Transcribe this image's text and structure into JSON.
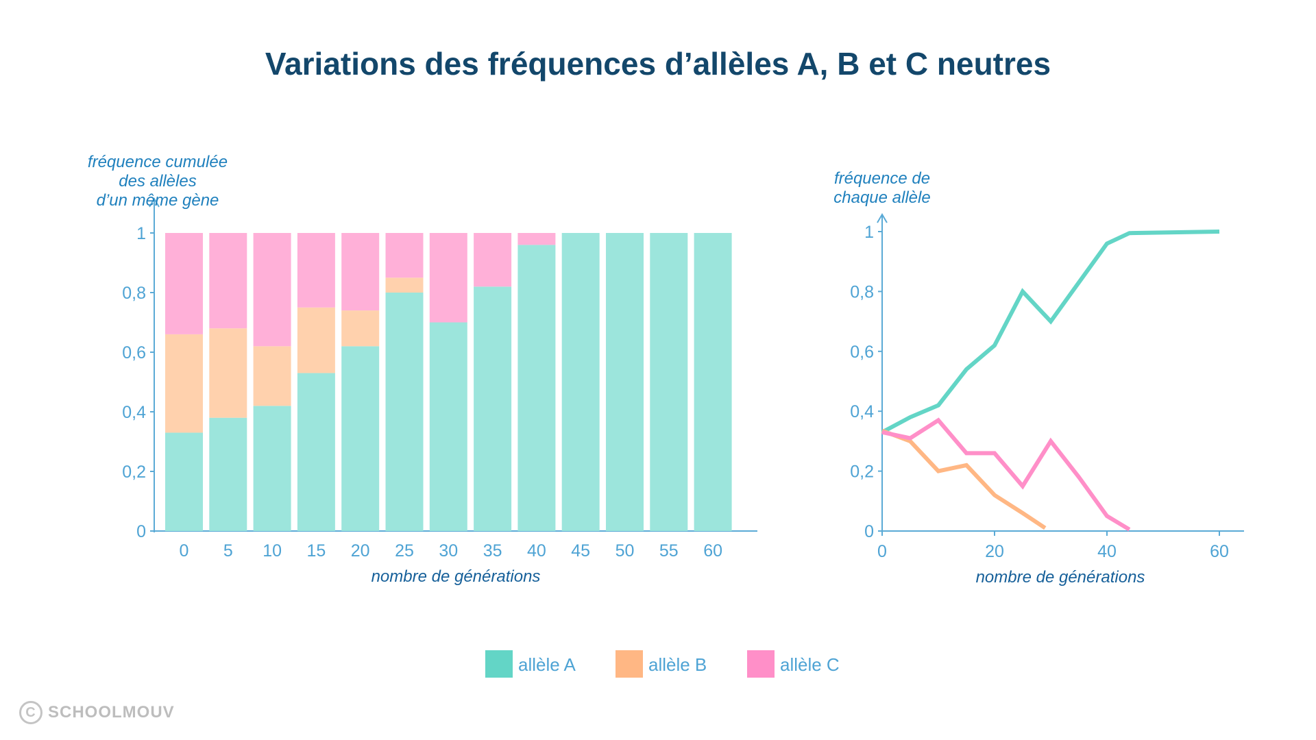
{
  "title": "Variations des fréquences d’allèles A, B et C neutres",
  "watermark": "SCHOOLMOUV",
  "legend": [
    {
      "label": "allèle A",
      "color": "#63d5c6"
    },
    {
      "label": "allèle B",
      "color": "#ffb784"
    },
    {
      "label": "allèle C",
      "color": "#ff8fc8"
    }
  ],
  "chart_data": [
    {
      "type": "bar",
      "stacked": true,
      "ylabel": [
        "fréquence cumulée",
        "des allèles",
        "d’un même gène"
      ],
      "xlabel": "nombre de générations",
      "ylim": [
        0,
        1
      ],
      "yticks": [
        0,
        0.2,
        0.4,
        0.6,
        0.8,
        1
      ],
      "ytick_labels": [
        "0",
        "0,2",
        "0,4",
        "0,6",
        "0,8",
        "1"
      ],
      "categories": [
        "0",
        "5",
        "10",
        "15",
        "20",
        "25",
        "30",
        "35",
        "40",
        "45",
        "50",
        "55",
        "60"
      ],
      "series": [
        {
          "name": "allèle A",
          "color": "#9ce5dc",
          "values": [
            0.33,
            0.38,
            0.42,
            0.53,
            0.62,
            0.8,
            0.7,
            0.82,
            0.96,
            1,
            1,
            1,
            1
          ]
        },
        {
          "name": "allèle B",
          "color": "#ffd1ad",
          "values": [
            0.33,
            0.3,
            0.2,
            0.22,
            0.12,
            0.05,
            0,
            0,
            0,
            0,
            0,
            0,
            0
          ]
        },
        {
          "name": "allèle C",
          "color": "#ffb0d8",
          "values": [
            0.34,
            0.32,
            0.38,
            0.25,
            0.26,
            0.15,
            0.3,
            0.18,
            0.04,
            0,
            0,
            0,
            0
          ]
        }
      ]
    },
    {
      "type": "line",
      "ylabel": [
        "fréquence de",
        "chaque allèle"
      ],
      "xlabel": "nombre de générations",
      "xlim": [
        0,
        65
      ],
      "ylim": [
        0,
        1
      ],
      "xticks": [
        0,
        20,
        40,
        60
      ],
      "yticks": [
        0,
        0.2,
        0.4,
        0.6,
        0.8,
        1
      ],
      "ytick_labels": [
        "0",
        "0,2",
        "0,4",
        "0,6",
        "0,8",
        "1"
      ],
      "series": [
        {
          "name": "allèle A",
          "color": "#63d5c6",
          "points": [
            [
              0,
              0.33
            ],
            [
              5,
              0.38
            ],
            [
              10,
              0.42
            ],
            [
              15,
              0.54
            ],
            [
              20,
              0.62
            ],
            [
              25,
              0.8
            ],
            [
              30,
              0.7
            ],
            [
              35,
              0.83
            ],
            [
              40,
              0.96
            ],
            [
              44,
              0.995
            ],
            [
              60,
              1
            ]
          ]
        },
        {
          "name": "allèle B",
          "color": "#ffb784",
          "points": [
            [
              0,
              0.335
            ],
            [
              5,
              0.3
            ],
            [
              10,
              0.2
            ],
            [
              15,
              0.22
            ],
            [
              20,
              0.12
            ],
            [
              25,
              0.06
            ],
            [
              29,
              0.01
            ]
          ]
        },
        {
          "name": "allèle C",
          "color": "#ff8fc8",
          "points": [
            [
              0,
              0.33
            ],
            [
              5,
              0.31
            ],
            [
              10,
              0.37
            ],
            [
              15,
              0.26
            ],
            [
              20,
              0.26
            ],
            [
              25,
              0.15
            ],
            [
              30,
              0.3
            ],
            [
              35,
              0.18
            ],
            [
              40,
              0.05
            ],
            [
              44,
              0.005
            ]
          ]
        }
      ]
    }
  ]
}
